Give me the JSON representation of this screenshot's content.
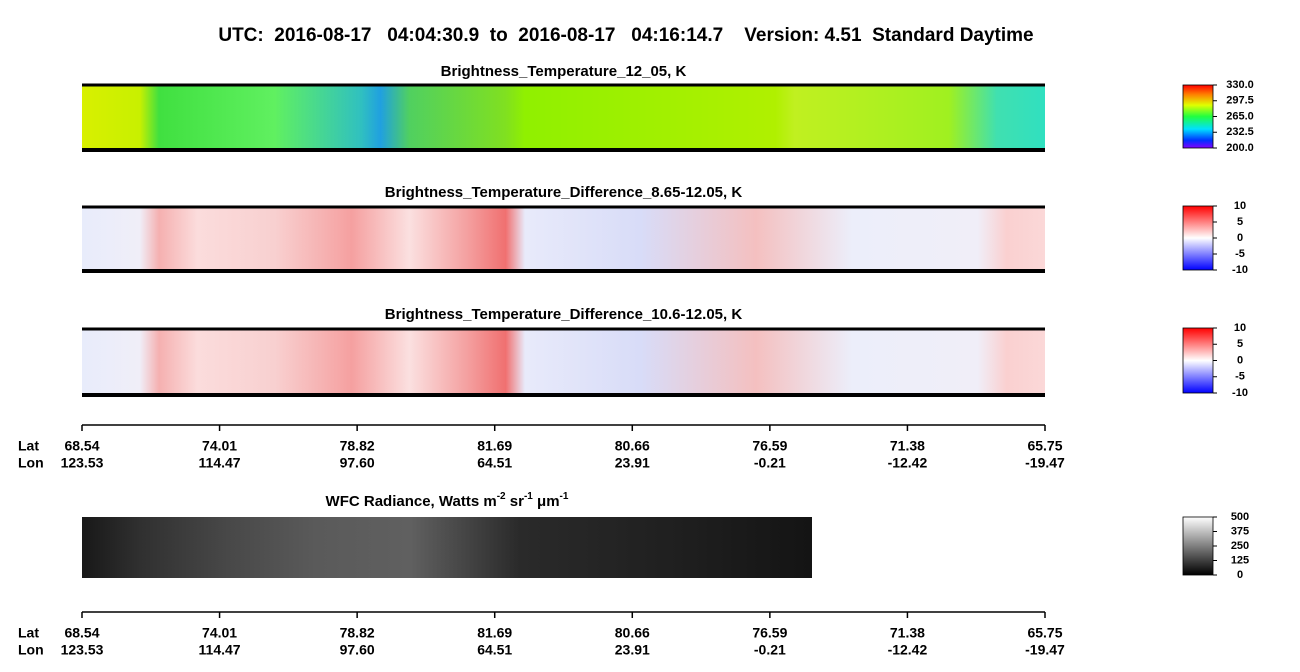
{
  "title": "UTC:  2016-08-17   04:04:30.9  to  2016-08-17   04:16:14.7    Version: 4.51  Standard Daytime",
  "chart_data": [
    {
      "type": "heatmap",
      "title": "Brightness_Temperature_12_05, K",
      "colormap": "rainbow",
      "zlim": [
        200,
        330
      ],
      "zticks": [
        {
          "value": 200,
          "label": "200.0"
        },
        {
          "value": 232.5,
          "label": "232.5"
        },
        {
          "value": 265,
          "label": "265.0"
        },
        {
          "value": 297.5,
          "label": "297.5"
        },
        {
          "value": 330,
          "label": "330.0"
        }
      ]
    },
    {
      "type": "heatmap",
      "title": "Brightness_Temperature_Difference_8.65-12.05, K",
      "colormap": "bwr",
      "zlim": [
        -10,
        10
      ],
      "zticks": [
        -10,
        -5,
        0,
        5,
        10
      ]
    },
    {
      "type": "heatmap",
      "title": "Brightness_Temperature_Difference_10.6-12.05, K",
      "colormap": "bwr",
      "zlim": [
        -10,
        10
      ],
      "zticks": [
        -10,
        -5,
        0,
        5,
        10
      ]
    },
    {
      "type": "heatmap",
      "title": [
        "WFC Radiance, Watts m",
        "-2",
        " sr",
        "-1",
        " μm",
        "-1"
      ],
      "colormap": "gray",
      "zlim": [
        0,
        500
      ],
      "zticks": [
        0,
        125,
        250,
        375,
        500
      ]
    }
  ],
  "axes": [
    {
      "row_labels": [
        "Lat",
        "Lon"
      ],
      "lat": [
        "68.54",
        "74.01",
        "78.82",
        "81.69",
        "80.66",
        "76.59",
        "71.38",
        "65.75"
      ],
      "lon": [
        "123.53",
        "114.47",
        "97.60",
        "64.51",
        "23.91",
        "-0.21",
        "-12.42",
        "-19.47"
      ]
    },
    {
      "row_labels": [
        "Lat",
        "Lon"
      ],
      "lat": [
        "68.54",
        "74.01",
        "78.82",
        "81.69",
        "80.66",
        "76.59",
        "71.38",
        "65.75"
      ],
      "lon": [
        "123.53",
        "114.47",
        "97.60",
        "64.51",
        "23.91",
        "-0.21",
        "-12.42",
        "-19.47"
      ]
    }
  ]
}
